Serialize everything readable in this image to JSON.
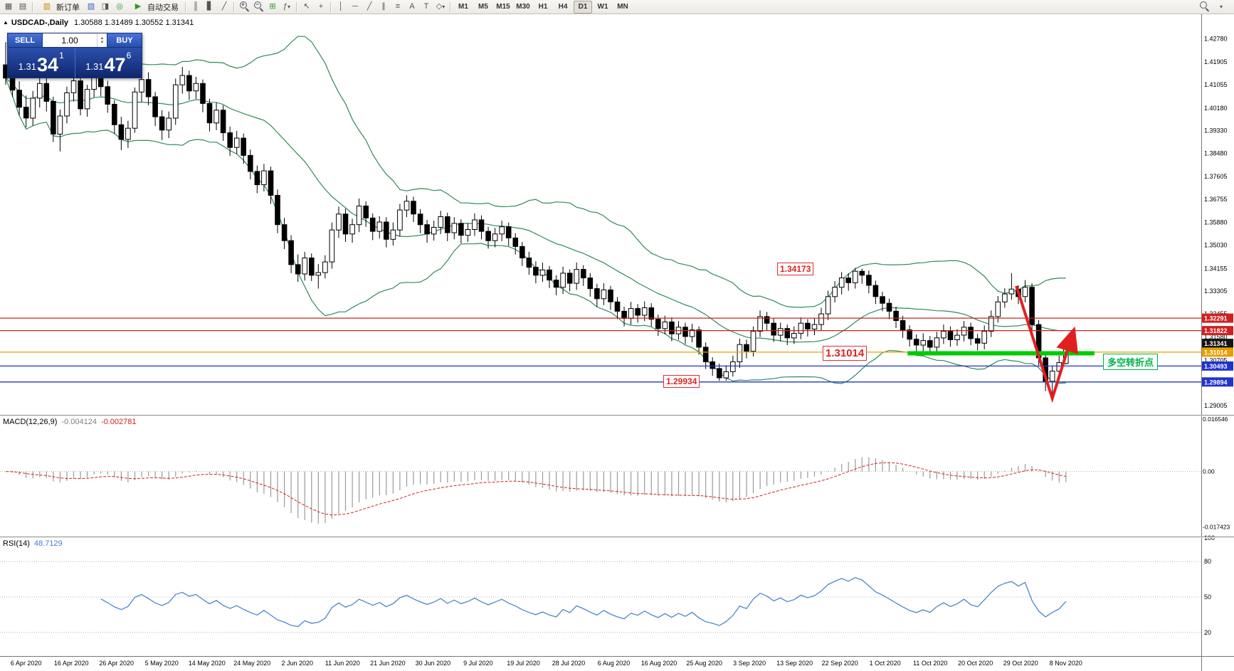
{
  "toolbar": {
    "new_order_label": "新订单",
    "autotrade_label": "自动交易",
    "timeframes": [
      "M1",
      "M5",
      "M15",
      "M30",
      "H1",
      "H4",
      "D1",
      "W1",
      "MN"
    ],
    "active_timeframe": "D1",
    "icons": [
      "chart-window",
      "tile-windows",
      "new-order",
      "market-watch",
      "data-window",
      "navigator",
      "autotrade-play",
      "bars-chart",
      "candlestick-chart",
      "line-chart",
      "zoom-in",
      "zoom-out",
      "tile-grid",
      "indicators",
      "cursor",
      "crosshair",
      "vertical-line",
      "horizontal-line",
      "trendline",
      "channel",
      "fibonacci",
      "objects-list",
      "text",
      "label",
      "shapes-dropdown",
      "search"
    ]
  },
  "chart_header": {
    "symbol_title": "USDCAD-,Daily",
    "ohlc": "1.30588 1.31489 1.30552 1.31341"
  },
  "trade_panel": {
    "sell_label": "SELL",
    "buy_label": "BUY",
    "volume": "1.00",
    "sell_price_big": "1.31",
    "sell_price_pips": "34",
    "sell_price_sup": "1",
    "buy_price_big": "1.31",
    "buy_price_pips": "47",
    "buy_price_sup": "6"
  },
  "annotations": {
    "high_label": "1.34173",
    "support_label": "1.31014",
    "low_label": "1.29934",
    "turning_point_label": "多空转折点"
  },
  "indicators": {
    "macd_name": "MACD(12,26,9)",
    "macd_value_main": "-0.004124",
    "macd_value_signal": "-0.002781",
    "rsi_name": "RSI(14)",
    "rsi_value": "48.7129"
  },
  "axis_tags": [
    {
      "label": "1.32291",
      "bg": "#d02020"
    },
    {
      "label": "1.31822",
      "bg": "#d02020"
    },
    {
      "label": "1.31341",
      "bg": "#141414"
    },
    {
      "label": "1.31014",
      "bg": "#e8a000"
    },
    {
      "label": "1.30493",
      "bg": "#2233cc"
    },
    {
      "label": "1.29894",
      "bg": "#2233cc"
    }
  ],
  "chart_data": {
    "type": "candlestick",
    "symbol": "USDCAD",
    "timeframe": "Daily",
    "price_range": [
      1.2866,
      1.437
    ],
    "y_ticks": [
      "1.42780",
      "1.41905",
      "1.41055",
      "1.40180",
      "1.39330",
      "1.38480",
      "1.37605",
      "1.36755",
      "1.35880",
      "1.35030",
      "1.34155",
      "1.33305",
      "1.32455",
      "1.31580",
      "1.30705",
      "1.29855",
      "1.29005"
    ],
    "x_labels": [
      "6 Apr 2020",
      "16 Apr 2020",
      "26 Apr 2020",
      "5 May 2020",
      "14 May 2020",
      "24 May 2020",
      "2 Jun 2020",
      "11 Jun 2020",
      "21 Jun 2020",
      "30 Jun 2020",
      "9 Jul 2020",
      "19 Jul 2020",
      "28 Jul 2020",
      "6 Aug 2020",
      "16 Aug 2020",
      "25 Aug 2020",
      "3 Sep 2020",
      "13 Sep 2020",
      "22 Sep 2020",
      "1 Oct 2020",
      "11 Oct 2020",
      "20 Oct 2020",
      "29 Oct 2020",
      "8 Nov 2020"
    ],
    "overlays": {
      "bollinger": {
        "period": 20,
        "deviation": 2,
        "color": "#2e8b57"
      },
      "hlines": [
        {
          "price": 1.32291,
          "color": "#d02020"
        },
        {
          "price": 1.31822,
          "color": "#d02020"
        },
        {
          "price": 1.31014,
          "color": "#e8a000"
        },
        {
          "price": 1.30493,
          "color": "#2233cc"
        },
        {
          "price": 1.29894,
          "color": "#2233cc"
        }
      ],
      "green_segment": {
        "price": 1.3097,
        "from_index": 132.7,
        "to_index": 160.2,
        "color": "#00cc00",
        "width": 6
      },
      "arrow": {
        "color": "#e02020",
        "width": 4,
        "points": [
          [
            148.7,
            1.335
          ],
          [
            154.0,
            1.2928
          ],
          [
            156.7,
            1.3147
          ]
        ]
      }
    },
    "macd": {
      "fast": 12,
      "slow": 26,
      "signal": 9,
      "range": [
        -0.0205,
        0.0174
      ],
      "scale_labels": [
        0.016546,
        0,
        -0.017423
      ],
      "hist_color": "#9a9a9a",
      "signal_color": "#d22222"
    },
    "rsi": {
      "period": 14,
      "range": [
        0,
        100
      ],
      "levels": [
        80,
        50,
        20
      ],
      "scale_labels": [
        100,
        80,
        50,
        20
      ],
      "color": "#4a86cf"
    },
    "candles": [
      [
        1.418,
        1.4265,
        1.4105,
        1.413
      ],
      [
        1.413,
        1.4172,
        1.406,
        1.4085
      ],
      [
        1.4085,
        1.4118,
        1.399,
        1.4021
      ],
      [
        1.4021,
        1.4065,
        1.3945,
        1.398
      ],
      [
        1.398,
        1.4082,
        1.3952,
        1.4055
      ],
      [
        1.4055,
        1.4145,
        1.402,
        1.411
      ],
      [
        1.411,
        1.4138,
        1.4005,
        1.4043
      ],
      [
        1.4043,
        1.406,
        1.389,
        1.392
      ],
      [
        1.392,
        1.4012,
        1.3855,
        1.3988
      ],
      [
        1.3988,
        1.4098,
        1.396,
        1.4075
      ],
      [
        1.4075,
        1.415,
        1.4042,
        1.412
      ],
      [
        1.412,
        1.4135,
        1.399,
        1.4015
      ],
      [
        1.4015,
        1.4105,
        1.3985,
        1.4088
      ],
      [
        1.4088,
        1.4185,
        1.4058,
        1.4165
      ],
      [
        1.4165,
        1.418,
        1.4062,
        1.4098
      ],
      [
        1.4098,
        1.412,
        1.4,
        1.4032
      ],
      [
        1.4032,
        1.4048,
        1.392,
        1.3955
      ],
      [
        1.3955,
        1.3985,
        1.386,
        1.39
      ],
      [
        1.39,
        1.397,
        1.3868,
        1.3942
      ],
      [
        1.3942,
        1.4095,
        1.3925,
        1.4078
      ],
      [
        1.4078,
        1.4148,
        1.404,
        1.4125
      ],
      [
        1.4125,
        1.4152,
        1.4028,
        1.406
      ],
      [
        1.406,
        1.4078,
        1.395,
        1.3985
      ],
      [
        1.3985,
        1.401,
        1.3898,
        1.3935
      ],
      [
        1.3935,
        1.4005,
        1.3905,
        1.398
      ],
      [
        1.398,
        1.4128,
        1.3955,
        1.4105
      ],
      [
        1.4105,
        1.4172,
        1.4072,
        1.414
      ],
      [
        1.414,
        1.4158,
        1.4048,
        1.4082
      ],
      [
        1.4082,
        1.4135,
        1.4052,
        1.411
      ],
      [
        1.411,
        1.4125,
        1.4002,
        1.4035
      ],
      [
        1.4035,
        1.4052,
        1.393,
        1.3962
      ],
      [
        1.3962,
        1.4038,
        1.3935,
        1.401
      ],
      [
        1.401,
        1.4028,
        1.3895,
        1.3925
      ],
      [
        1.3925,
        1.3948,
        1.3838,
        1.387
      ],
      [
        1.387,
        1.3932,
        1.3845,
        1.3905
      ],
      [
        1.3905,
        1.3922,
        1.3808,
        1.384
      ],
      [
        1.384,
        1.3862,
        1.375,
        1.378
      ],
      [
        1.378,
        1.3802,
        1.3698,
        1.373
      ],
      [
        1.373,
        1.3808,
        1.3705,
        1.3782
      ],
      [
        1.3782,
        1.3798,
        1.3658,
        1.369
      ],
      [
        1.369,
        1.3712,
        1.3548,
        1.358
      ],
      [
        1.358,
        1.3605,
        1.3488,
        1.352
      ],
      [
        1.352,
        1.354,
        1.3398,
        1.343
      ],
      [
        1.343,
        1.3468,
        1.3365,
        1.3395
      ],
      [
        1.3395,
        1.3478,
        1.337,
        1.3455
      ],
      [
        1.3455,
        1.3472,
        1.3368,
        1.339
      ],
      [
        1.339,
        1.3432,
        1.334,
        1.34
      ],
      [
        1.34,
        1.3465,
        1.3378,
        1.344
      ],
      [
        1.344,
        1.3588,
        1.3415,
        1.356
      ],
      [
        1.356,
        1.3648,
        1.353,
        1.362
      ],
      [
        1.362,
        1.364,
        1.3515,
        1.3545
      ],
      [
        1.3545,
        1.3602,
        1.3512,
        1.358
      ],
      [
        1.358,
        1.3678,
        1.3552,
        1.365
      ],
      [
        1.365,
        1.3668,
        1.3572,
        1.3605
      ],
      [
        1.3605,
        1.3622,
        1.3522,
        1.3555
      ],
      [
        1.3555,
        1.3612,
        1.3528,
        1.359
      ],
      [
        1.359,
        1.3608,
        1.3495,
        1.3525
      ],
      [
        1.3525,
        1.3588,
        1.3502,
        1.356
      ],
      [
        1.356,
        1.3658,
        1.3535,
        1.3635
      ],
      [
        1.3635,
        1.369,
        1.3608,
        1.3668
      ],
      [
        1.3668,
        1.3685,
        1.359,
        1.362
      ],
      [
        1.362,
        1.3638,
        1.3548,
        1.358
      ],
      [
        1.358,
        1.3598,
        1.3512,
        1.3545
      ],
      [
        1.3545,
        1.3595,
        1.352,
        1.357
      ],
      [
        1.357,
        1.3632,
        1.3545,
        1.361
      ],
      [
        1.361,
        1.3625,
        1.3518,
        1.355
      ],
      [
        1.355,
        1.3608,
        1.3525,
        1.3585
      ],
      [
        1.3585,
        1.36,
        1.351,
        1.354
      ],
      [
        1.354,
        1.3585,
        1.3515,
        1.3562
      ],
      [
        1.3562,
        1.3622,
        1.3538,
        1.3598
      ],
      [
        1.3598,
        1.3615,
        1.3525,
        1.3555
      ],
      [
        1.3555,
        1.3572,
        1.349,
        1.352
      ],
      [
        1.352,
        1.3568,
        1.3495,
        1.3545
      ],
      [
        1.3545,
        1.3595,
        1.3518,
        1.3572
      ],
      [
        1.3572,
        1.3588,
        1.35,
        1.353
      ],
      [
        1.353,
        1.3548,
        1.3468,
        1.3498
      ],
      [
        1.3498,
        1.3515,
        1.3425,
        1.3455
      ],
      [
        1.3455,
        1.3478,
        1.3392,
        1.342
      ],
      [
        1.342,
        1.3442,
        1.336,
        1.339
      ],
      [
        1.339,
        1.3438,
        1.3365,
        1.341
      ],
      [
        1.341,
        1.3425,
        1.3342,
        1.3372
      ],
      [
        1.3372,
        1.339,
        1.3315,
        1.3345
      ],
      [
        1.3345,
        1.3422,
        1.332,
        1.3398
      ],
      [
        1.3398,
        1.3412,
        1.333,
        1.336
      ],
      [
        1.336,
        1.3438,
        1.3335,
        1.3412
      ],
      [
        1.3412,
        1.3428,
        1.335,
        1.338
      ],
      [
        1.338,
        1.3398,
        1.331,
        1.334
      ],
      [
        1.334,
        1.3358,
        1.3272,
        1.3302
      ],
      [
        1.3302,
        1.336,
        1.3278,
        1.3335
      ],
      [
        1.3335,
        1.335,
        1.326,
        1.329
      ],
      [
        1.329,
        1.3308,
        1.3225,
        1.3255
      ],
      [
        1.3255,
        1.3272,
        1.3198,
        1.3228
      ],
      [
        1.3228,
        1.329,
        1.3205,
        1.3265
      ],
      [
        1.3265,
        1.3282,
        1.3212,
        1.324
      ],
      [
        1.324,
        1.3292,
        1.3218,
        1.3268
      ],
      [
        1.3268,
        1.3285,
        1.3198,
        1.3225
      ],
      [
        1.3225,
        1.3242,
        1.3162,
        1.319
      ],
      [
        1.319,
        1.3238,
        1.3168,
        1.3215
      ],
      [
        1.3215,
        1.3232,
        1.3142,
        1.317
      ],
      [
        1.317,
        1.3218,
        1.3148,
        1.3195
      ],
      [
        1.3195,
        1.3212,
        1.3132,
        1.316
      ],
      [
        1.316,
        1.3208,
        1.3138,
        1.3185
      ],
      [
        1.3185,
        1.3198,
        1.3092,
        1.312
      ],
      [
        1.312,
        1.3138,
        1.3038,
        1.3065
      ],
      [
        1.3065,
        1.3082,
        1.3012,
        1.304
      ],
      [
        1.304,
        1.3058,
        1.29934,
        1.3005
      ],
      [
        1.3005,
        1.3052,
        1.29945,
        1.3028
      ],
      [
        1.3028,
        1.3088,
        1.301,
        1.3065
      ],
      [
        1.3065,
        1.3152,
        1.3042,
        1.313
      ],
      [
        1.313,
        1.3148,
        1.3078,
        1.3105
      ],
      [
        1.3105,
        1.3198,
        1.3085,
        1.318
      ],
      [
        1.318,
        1.3258,
        1.3158,
        1.3235
      ],
      [
        1.3235,
        1.3252,
        1.3182,
        1.321
      ],
      [
        1.321,
        1.3228,
        1.314,
        1.3165
      ],
      [
        1.3165,
        1.3212,
        1.3142,
        1.319
      ],
      [
        1.319,
        1.3205,
        1.3128,
        1.3155
      ],
      [
        1.3155,
        1.3198,
        1.3132,
        1.3172
      ],
      [
        1.3172,
        1.3232,
        1.315,
        1.321
      ],
      [
        1.321,
        1.3225,
        1.316,
        1.3188
      ],
      [
        1.3188,
        1.3228,
        1.3165,
        1.3205
      ],
      [
        1.3205,
        1.3268,
        1.3182,
        1.3245
      ],
      [
        1.3245,
        1.3332,
        1.3222,
        1.331
      ],
      [
        1.331,
        1.3368,
        1.3288,
        1.3345
      ],
      [
        1.3345,
        1.3402,
        1.3318,
        1.338
      ],
      [
        1.338,
        1.3398,
        1.3332,
        1.3362
      ],
      [
        1.3362,
        1.34173,
        1.334,
        1.3405
      ],
      [
        1.3405,
        1.3415,
        1.3358,
        1.339
      ],
      [
        1.339,
        1.3408,
        1.3322,
        1.3352
      ],
      [
        1.3352,
        1.337,
        1.3282,
        1.331
      ],
      [
        1.331,
        1.3328,
        1.3255,
        1.3285
      ],
      [
        1.3285,
        1.3302,
        1.3225,
        1.3255
      ],
      [
        1.3255,
        1.3272,
        1.3192,
        1.322
      ],
      [
        1.322,
        1.3238,
        1.3155,
        1.3185
      ],
      [
        1.3185,
        1.3202,
        1.3122,
        1.315
      ],
      [
        1.315,
        1.3168,
        1.31,
        1.3128
      ],
      [
        1.3128,
        1.3172,
        1.3105,
        1.3145
      ],
      [
        1.3145,
        1.3162,
        1.3095,
        1.312
      ],
      [
        1.312,
        1.3178,
        1.3098,
        1.3155
      ],
      [
        1.3155,
        1.3205,
        1.3132,
        1.318
      ],
      [
        1.318,
        1.3198,
        1.3122,
        1.3148
      ],
      [
        1.3148,
        1.3188,
        1.3125,
        1.3165
      ],
      [
        1.3165,
        1.3218,
        1.3142,
        1.3195
      ],
      [
        1.3195,
        1.3212,
        1.3128,
        1.3152
      ],
      [
        1.3152,
        1.317,
        1.3108,
        1.3135
      ],
      [
        1.3135,
        1.3202,
        1.3112,
        1.318
      ],
      [
        1.318,
        1.3258,
        1.3158,
        1.3235
      ],
      [
        1.3235,
        1.3312,
        1.3212,
        1.329
      ],
      [
        1.329,
        1.3342,
        1.3268,
        1.332
      ],
      [
        1.332,
        1.3398,
        1.3298,
        1.3338
      ],
      [
        1.3338,
        1.3352,
        1.3282,
        1.331
      ],
      [
        1.331,
        1.3372,
        1.3288,
        1.3345
      ],
      [
        1.3345,
        1.336,
        1.3178,
        1.3205
      ],
      [
        1.3205,
        1.3222,
        1.3052,
        1.308
      ],
      [
        1.308,
        1.3098,
        1.2955,
        1.2992
      ],
      [
        1.2992,
        1.3048,
        1.2944,
        1.303
      ],
      [
        1.303,
        1.3088,
        1.3005,
        1.3062
      ],
      [
        1.30588,
        1.31489,
        1.30552,
        1.31341
      ]
    ]
  }
}
